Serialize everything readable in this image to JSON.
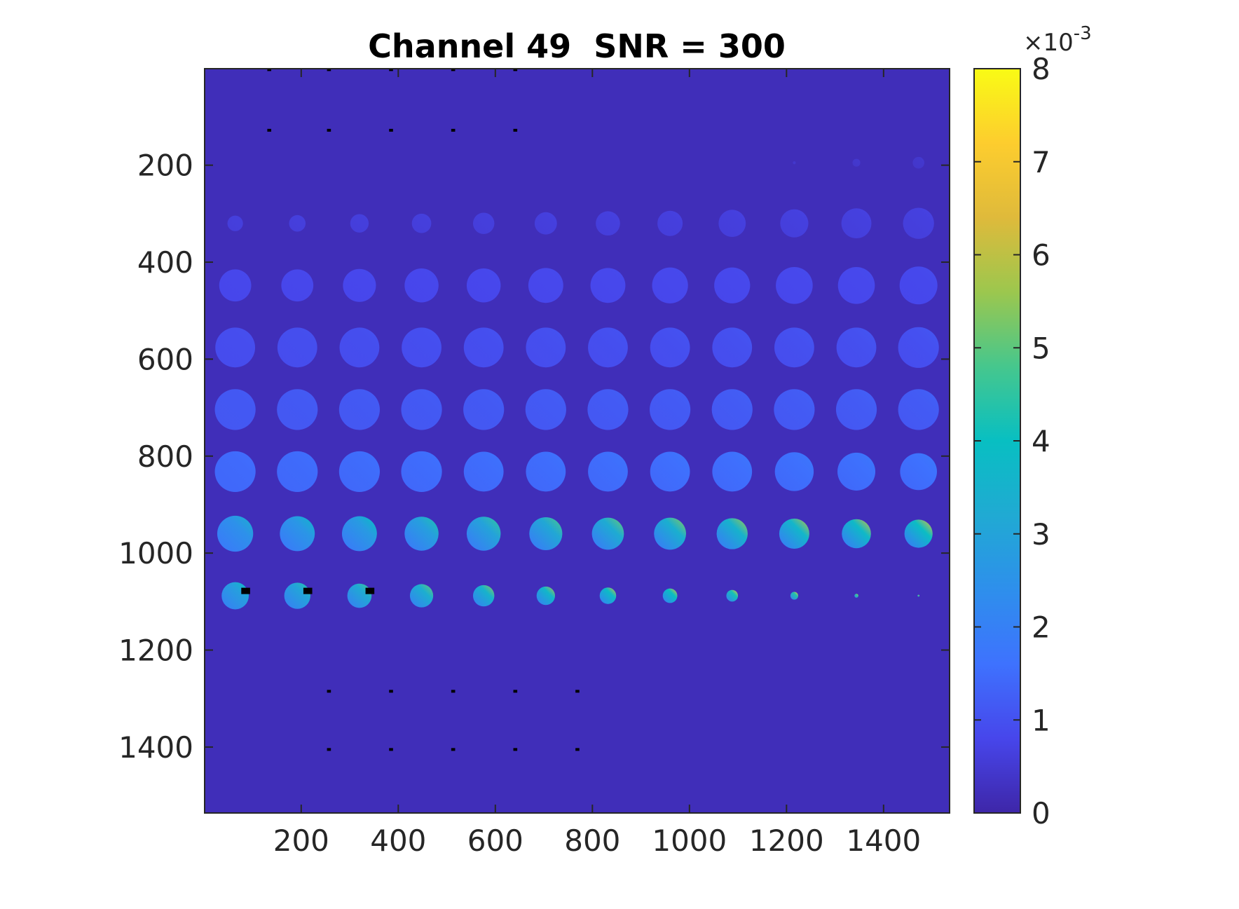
{
  "chart_data": {
    "type": "heatmap",
    "title": "Channel 49  SNR = 300",
    "xlabel": "",
    "ylabel": "",
    "xlim": [
      1,
      1536
    ],
    "ylim": [
      1,
      1536
    ],
    "y_direction": "reversed",
    "x_ticks": [
      200,
      400,
      600,
      800,
      1000,
      1200,
      1400
    ],
    "x_tick_labels": [
      "200",
      "400",
      "600",
      "800",
      "1000",
      "1200",
      "1400"
    ],
    "y_ticks": [
      200,
      400,
      600,
      800,
      1000,
      1200,
      1400
    ],
    "y_tick_labels": [
      "200",
      "400",
      "600",
      "800",
      "1000",
      "1200",
      "1400"
    ],
    "colormap": "parula",
    "colormap_stops": [
      "#3e26a8",
      "#4746eb",
      "#3e72fe",
      "#2e8fec",
      "#20aad3",
      "#08bfc2",
      "#46c78d",
      "#9cc74e",
      "#dfba3b",
      "#fdcd2e",
      "#f9fb15"
    ],
    "background_value": 0.0002,
    "colorbar": {
      "clim": [
        0,
        0.008
      ],
      "ticks": [
        0,
        1,
        2,
        3,
        4,
        5,
        6,
        7,
        8
      ],
      "tick_labels": [
        "0",
        "1",
        "2",
        "3",
        "4",
        "5",
        "6",
        "7",
        "8"
      ],
      "exponent_label": "×10",
      "exponent_power": "-3"
    },
    "grid": false,
    "legend": "none",
    "disk_grid": {
      "columns_x": [
        64,
        192,
        320,
        448,
        576,
        704,
        832,
        960,
        1088,
        1216,
        1344,
        1472
      ],
      "rows": [
        {
          "y": 195,
          "radii": [
            0,
            0,
            0,
            0,
            0,
            0,
            0,
            0,
            0,
            3,
            8,
            12
          ],
          "base": 0.0004,
          "peak": 0.0005
        },
        {
          "y": 320,
          "radii": [
            16,
            17,
            19,
            20,
            22,
            23,
            25,
            26,
            28,
            29,
            31,
            32
          ],
          "base": 0.0006,
          "peak": 0.0007
        },
        {
          "y": 448,
          "radii": [
            33,
            33,
            34,
            35,
            35,
            36,
            36,
            37,
            37,
            38,
            38,
            39
          ],
          "base": 0.0008,
          "peak": 0.0009
        },
        {
          "y": 576,
          "radii": [
            41,
            41,
            41,
            41,
            41,
            41,
            41,
            41,
            41,
            41,
            41,
            42
          ],
          "base": 0.0009,
          "peak": 0.0011
        },
        {
          "y": 704,
          "radii": [
            42,
            42,
            42,
            42,
            42,
            42,
            42,
            42,
            42,
            42,
            42,
            42
          ],
          "base": 0.0011,
          "peak": 0.0013
        },
        {
          "y": 832,
          "radii": [
            42,
            42,
            42,
            42,
            41,
            41,
            41,
            41,
            41,
            40,
            39,
            38
          ],
          "base": 0.0014,
          "peak": 0.0018
        },
        {
          "y": 960,
          "radii": [
            37,
            36,
            36,
            35,
            35,
            34,
            33,
            33,
            32,
            31,
            30,
            29
          ],
          "base": 0.0017,
          "peak": 0.0066
        },
        {
          "y": 1088,
          "radii": [
            28,
            27,
            25,
            24,
            22,
            19,
            17,
            15,
            12,
            8,
            4,
            2
          ],
          "base": 0.0019,
          "peak": 0.008
        }
      ]
    },
    "missing_pixels": [
      {
        "x": 133,
        "y": 3
      },
      {
        "x": 256,
        "y": 3
      },
      {
        "x": 384,
        "y": 3
      },
      {
        "x": 512,
        "y": 3
      },
      {
        "x": 640,
        "y": 3
      },
      {
        "x": 133,
        "y": 128
      },
      {
        "x": 256,
        "y": 128
      },
      {
        "x": 384,
        "y": 128
      },
      {
        "x": 512,
        "y": 128
      },
      {
        "x": 640,
        "y": 128
      },
      {
        "x": 83,
        "y": 1078
      },
      {
        "x": 211,
        "y": 1078
      },
      {
        "x": 339,
        "y": 1078
      },
      {
        "x": 256,
        "y": 1285
      },
      {
        "x": 384,
        "y": 1285
      },
      {
        "x": 512,
        "y": 1285
      },
      {
        "x": 640,
        "y": 1285
      },
      {
        "x": 768,
        "y": 1285
      },
      {
        "x": 256,
        "y": 1405
      },
      {
        "x": 384,
        "y": 1405
      },
      {
        "x": 512,
        "y": 1405
      },
      {
        "x": 640,
        "y": 1405
      },
      {
        "x": 768,
        "y": 1405
      }
    ]
  }
}
